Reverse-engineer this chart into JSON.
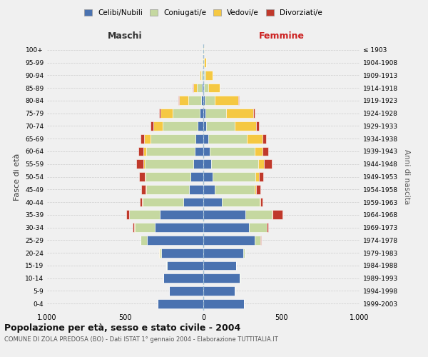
{
  "age_groups": [
    "0-4",
    "5-9",
    "10-14",
    "15-19",
    "20-24",
    "25-29",
    "30-34",
    "35-39",
    "40-44",
    "45-49",
    "50-54",
    "55-59",
    "60-64",
    "65-69",
    "70-74",
    "75-79",
    "80-84",
    "85-89",
    "90-94",
    "95-99",
    "100+"
  ],
  "birth_years": [
    "1999-2003",
    "1994-1998",
    "1989-1993",
    "1984-1988",
    "1979-1983",
    "1974-1978",
    "1969-1973",
    "1964-1968",
    "1959-1963",
    "1954-1958",
    "1949-1953",
    "1944-1948",
    "1939-1943",
    "1934-1938",
    "1929-1933",
    "1924-1928",
    "1919-1923",
    "1914-1918",
    "1909-1913",
    "1904-1908",
    "≤ 1903"
  ],
  "maschi": {
    "celibi": [
      290,
      220,
      255,
      235,
      270,
      360,
      310,
      280,
      130,
      90,
      80,
      65,
      55,
      50,
      35,
      25,
      15,
      10,
      5,
      2,
      2
    ],
    "coniugati": [
      0,
      0,
      1,
      2,
      10,
      40,
      130,
      195,
      260,
      275,
      290,
      310,
      310,
      290,
      225,
      170,
      80,
      30,
      10,
      3,
      1
    ],
    "vedovi": [
      0,
      0,
      0,
      0,
      1,
      1,
      1,
      2,
      2,
      3,
      5,
      10,
      20,
      40,
      60,
      80,
      60,
      25,
      10,
      2,
      0
    ],
    "divorziati": [
      0,
      0,
      0,
      0,
      1,
      2,
      10,
      15,
      15,
      30,
      35,
      45,
      30,
      20,
      20,
      10,
      5,
      2,
      0,
      0,
      0
    ]
  },
  "femmine": {
    "nubili": [
      260,
      200,
      235,
      210,
      255,
      330,
      290,
      270,
      120,
      75,
      60,
      50,
      40,
      30,
      20,
      15,
      10,
      5,
      3,
      2,
      1
    ],
    "coniugate": [
      0,
      0,
      1,
      2,
      10,
      35,
      115,
      170,
      240,
      255,
      275,
      300,
      290,
      250,
      180,
      130,
      65,
      25,
      10,
      2,
      1
    ],
    "vedove": [
      0,
      0,
      0,
      0,
      1,
      2,
      2,
      5,
      5,
      10,
      20,
      40,
      50,
      100,
      140,
      175,
      150,
      75,
      45,
      15,
      2
    ],
    "divorziate": [
      0,
      0,
      0,
      0,
      1,
      2,
      10,
      60,
      15,
      25,
      30,
      50,
      35,
      20,
      15,
      10,
      5,
      2,
      0,
      0,
      0
    ]
  },
  "colors": {
    "celibi": "#4a72b0",
    "coniugati": "#c5d8a0",
    "vedovi": "#f5c842",
    "divorziati": "#c0392b"
  },
  "title": "Popolazione per età, sesso e stato civile - 2004",
  "subtitle": "COMUNE DI ZOLA PREDOSA (BO) - Dati ISTAT 1° gennaio 2004 - Elaborazione TUTTITALIA.IT",
  "ylabel": "Fasce di età",
  "ylabel_right": "Anni di nascita",
  "xlabel_left": "Maschi",
  "xlabel_right": "Femmine",
  "xlim": 1000,
  "legend_labels": [
    "Celibi/Nubili",
    "Coniugati/e",
    "Vedovi/e",
    "Divorziati/e"
  ],
  "bg_color": "#f0f0f0"
}
